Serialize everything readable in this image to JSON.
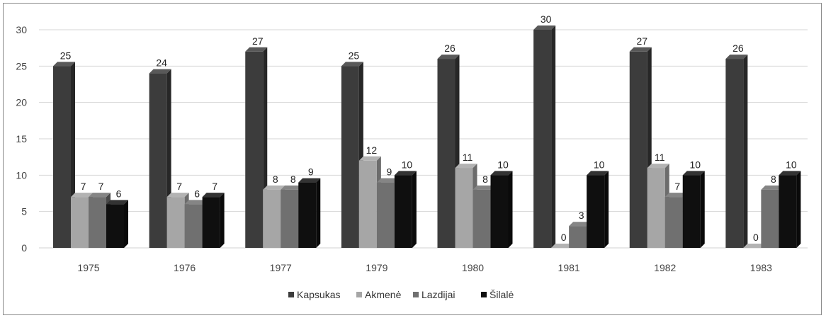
{
  "chart_data": {
    "type": "bar",
    "categories": [
      "1975",
      "1976",
      "1977",
      "1979",
      "1980",
      "1981",
      "1982",
      "1983"
    ],
    "series": [
      {
        "name": "Kapsukas",
        "values": [
          25,
          24,
          27,
          25,
          26,
          30,
          27,
          26
        ],
        "color": "#3c3c3c"
      },
      {
        "name": "Akmenė",
        "values": [
          7,
          7,
          8,
          12,
          11,
          0,
          11,
          0
        ],
        "color": "#a6a6a6"
      },
      {
        "name": "Lazdijai",
        "values": [
          7,
          6,
          8,
          9,
          8,
          3,
          7,
          8
        ],
        "color": "#707070"
      },
      {
        "name": "Šilalė",
        "values": [
          6,
          7,
          9,
          10,
          10,
          10,
          10,
          10
        ],
        "color": "#0f0f0f"
      }
    ],
    "yticks": [
      0,
      5,
      10,
      15,
      20,
      25,
      30
    ],
    "ylim": [
      0,
      30
    ],
    "grid": true,
    "legend": "bottom-center"
  }
}
